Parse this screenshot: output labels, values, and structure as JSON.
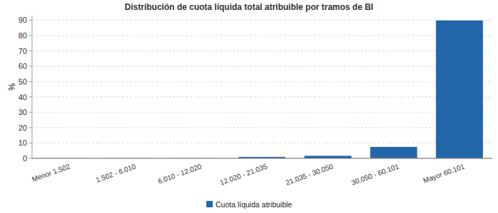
{
  "chart_data": {
    "type": "bar",
    "title": "Distribución de cuota líquida total atribuible por tramos de BI",
    "y_label": "%",
    "categories": [
      "Menor 1.502",
      "1.502 - 6.010",
      "6.010 - 12.020",
      "12.020 - 21.035",
      "21.035 - 30.050",
      "30.050 - 60.101",
      "Mayor 60.101"
    ],
    "series": [
      {
        "name": "Cuota líquida atribuible",
        "color": "#2166a8",
        "values": [
          0.05,
          0.1,
          0.2,
          1.0,
          1.8,
          7.5,
          90
        ]
      }
    ],
    "ylim": [
      0,
      93
    ],
    "yticks": [
      0,
      10,
      20,
      30,
      40,
      50,
      60,
      70,
      80,
      90
    ],
    "grid": true,
    "legend": "bottom"
  }
}
